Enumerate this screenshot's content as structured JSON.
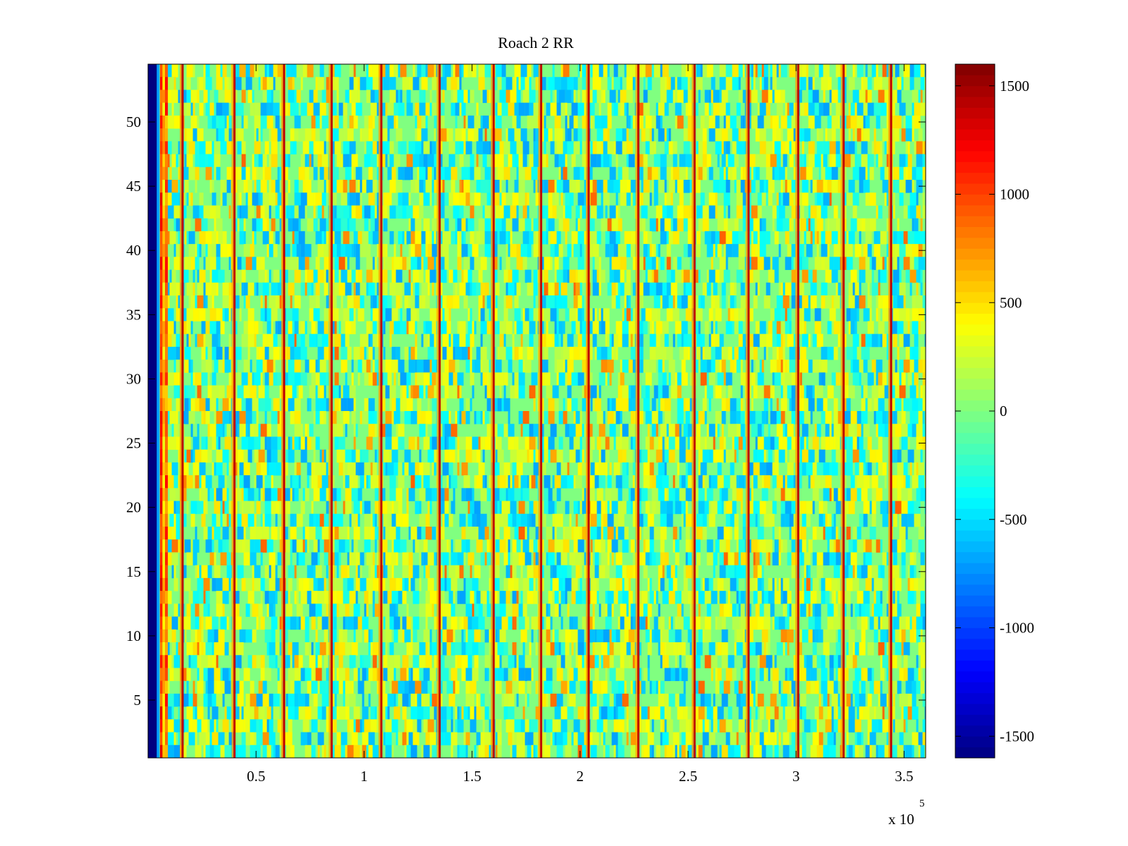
{
  "chart_data": {
    "type": "heatmap",
    "title": "Roach 2 RR",
    "xlabel": "",
    "ylabel": "",
    "x_multiplier_label": "x 10",
    "x_multiplier_exponent": "5",
    "x_ticks": [
      0.5,
      1,
      1.5,
      2,
      2.5,
      3,
      3.5
    ],
    "x_tick_labels": [
      "0.5",
      "1",
      "1.5",
      "2",
      "2.5",
      "3",
      "3.5"
    ],
    "x_range": [
      0,
      3.6
    ],
    "y_ticks": [
      5,
      10,
      15,
      20,
      25,
      30,
      35,
      40,
      45,
      50
    ],
    "y_tick_labels": [
      "5",
      "10",
      "15",
      "20",
      "25",
      "30",
      "35",
      "40",
      "45",
      "50"
    ],
    "y_range": [
      0.5,
      54.5
    ],
    "rows": 54,
    "colormap": "jet",
    "color_range": [
      -1600,
      1600
    ],
    "colorbar_ticks": [
      1500,
      1000,
      500,
      0,
      -500,
      -1000,
      -1500
    ],
    "colorbar_tick_labels": [
      "1500",
      "1000",
      "500",
      "0",
      "-500",
      "-1000",
      "-1500"
    ],
    "colorbar_position": "right",
    "background_value": 0,
    "edge_band": {
      "x_end": 0.05,
      "value": -1600
    },
    "hot_band": {
      "x_start": 0.055,
      "x_end": 0.09,
      "value": 1100
    },
    "vertical_stripes_x": [
      0.16,
      0.4,
      0.63,
      0.85,
      1.08,
      1.35,
      1.6,
      1.82,
      2.04,
      2.27,
      2.53,
      2.78,
      3.01,
      3.22,
      3.44
    ],
    "vertical_stripes_value": 1400
  }
}
